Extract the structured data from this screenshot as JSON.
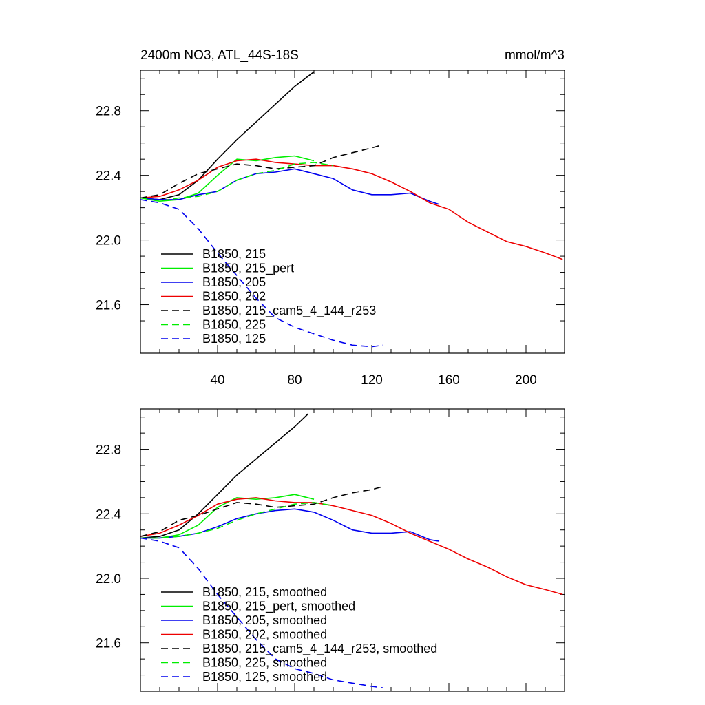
{
  "chart_data": [
    {
      "type": "line",
      "title": "2400m NO3, ATL_44S-18S",
      "units": "mmol/m^3",
      "xlim": [
        0,
        220
      ],
      "ylim": [
        21.3,
        23.05
      ],
      "xticks": [
        40,
        80,
        120,
        160,
        200
      ],
      "xtick_labels": [
        "40",
        "80",
        "120",
        "160",
        "200"
      ],
      "yticks": [
        21.6,
        22.0,
        22.4,
        22.8
      ],
      "ytick_labels": [
        "21.6",
        "22.0",
        "22.4",
        "22.8"
      ],
      "legend_position": "bottom-left",
      "series": [
        {
          "name": "B1850, 215",
          "color": "#000000",
          "dash": "solid",
          "x": [
            0,
            10,
            20,
            30,
            40,
            50,
            60,
            70,
            80,
            90
          ],
          "y": [
            22.26,
            22.25,
            22.28,
            22.37,
            22.5,
            22.62,
            22.73,
            22.84,
            22.95,
            23.04
          ]
        },
        {
          "name": "B1850, 215_pert",
          "color": "#00ee00",
          "dash": "solid",
          "x": [
            0,
            10,
            20,
            30,
            40,
            50,
            60,
            70,
            80,
            90
          ],
          "y": [
            22.26,
            22.24,
            22.25,
            22.29,
            22.4,
            22.5,
            22.49,
            22.51,
            22.52,
            22.49
          ]
        },
        {
          "name": "B1850, 205",
          "color": "#0000ee",
          "dash": "solid",
          "x": [
            0,
            10,
            20,
            30,
            40,
            50,
            60,
            70,
            80,
            90,
            100,
            110,
            120,
            130,
            140,
            150,
            155
          ],
          "y": [
            22.26,
            22.25,
            22.25,
            22.28,
            22.3,
            22.37,
            22.41,
            22.42,
            22.44,
            22.41,
            22.38,
            22.31,
            22.28,
            22.28,
            22.29,
            22.24,
            22.22
          ]
        },
        {
          "name": "B1850, 202",
          "color": "#ee0000",
          "dash": "solid",
          "x": [
            0,
            10,
            20,
            30,
            40,
            50,
            60,
            70,
            80,
            90,
            100,
            110,
            120,
            130,
            140,
            150,
            160,
            170,
            180,
            190,
            200,
            210,
            219
          ],
          "y": [
            22.26,
            22.27,
            22.31,
            22.37,
            22.45,
            22.49,
            22.5,
            22.48,
            22.47,
            22.46,
            22.46,
            22.44,
            22.41,
            22.36,
            22.3,
            22.23,
            22.19,
            22.11,
            22.05,
            21.99,
            21.96,
            21.92,
            21.88
          ]
        },
        {
          "name": "B1850, 215_cam5_4_144_r253",
          "color": "#000000",
          "dash": "dashed",
          "x": [
            0,
            10,
            20,
            30,
            40,
            50,
            60,
            70,
            80,
            90,
            100,
            110,
            120,
            126
          ],
          "y": [
            22.26,
            22.28,
            22.35,
            22.41,
            22.44,
            22.47,
            22.46,
            22.44,
            22.45,
            22.46,
            22.51,
            22.54,
            22.57,
            22.59
          ]
        },
        {
          "name": "B1850, 225",
          "color": "#00ee00",
          "dash": "dashed",
          "x": [
            0,
            10,
            20,
            30,
            40,
            50,
            60,
            70,
            80,
            90,
            100
          ],
          "y": [
            22.26,
            22.24,
            22.26,
            22.27,
            22.3,
            22.37,
            22.41,
            22.43,
            22.47,
            22.48,
            22.46
          ]
        },
        {
          "name": "B1850, 125",
          "color": "#0000ee",
          "dash": "dashed",
          "x": [
            0,
            10,
            20,
            30,
            40,
            50,
            60,
            70,
            80,
            90,
            100,
            110,
            120,
            126
          ],
          "y": [
            22.25,
            22.23,
            22.19,
            22.07,
            21.92,
            21.78,
            21.64,
            21.52,
            21.46,
            21.42,
            21.38,
            21.35,
            21.34,
            21.35
          ]
        }
      ]
    },
    {
      "type": "line",
      "title": "",
      "xlim": [
        0,
        220
      ],
      "ylim": [
        21.3,
        23.05
      ],
      "xticks": [
        40,
        80,
        120,
        160,
        200
      ],
      "xtick_labels": [],
      "yticks": [
        21.6,
        22.0,
        22.4,
        22.8
      ],
      "ytick_labels": [
        "21.6",
        "22.0",
        "22.4",
        "22.8"
      ],
      "legend_position": "bottom-left",
      "series": [
        {
          "name": "B1850, 215, smoothed",
          "color": "#000000",
          "dash": "solid",
          "x": [
            0,
            10,
            20,
            30,
            40,
            50,
            60,
            70,
            80,
            87
          ],
          "y": [
            22.25,
            22.26,
            22.3,
            22.4,
            22.52,
            22.64,
            22.74,
            22.84,
            22.94,
            23.02
          ]
        },
        {
          "name": "B1850, 215_pert, smoothed",
          "color": "#00ee00",
          "dash": "solid",
          "x": [
            0,
            10,
            20,
            30,
            40,
            50,
            60,
            70,
            80,
            90
          ],
          "y": [
            22.25,
            22.25,
            22.27,
            22.33,
            22.44,
            22.5,
            22.49,
            22.5,
            22.52,
            22.49
          ]
        },
        {
          "name": "B1850, 205, smoothed",
          "color": "#0000ee",
          "dash": "solid",
          "x": [
            0,
            10,
            20,
            30,
            40,
            50,
            60,
            70,
            80,
            90,
            100,
            110,
            120,
            130,
            140,
            150,
            155
          ],
          "y": [
            22.25,
            22.25,
            22.26,
            22.28,
            22.32,
            22.37,
            22.4,
            22.42,
            22.43,
            22.41,
            22.36,
            22.3,
            22.28,
            22.28,
            22.29,
            22.24,
            22.23
          ]
        },
        {
          "name": "B1850, 202, smoothed",
          "color": "#ee0000",
          "dash": "solid",
          "x": [
            0,
            10,
            20,
            30,
            40,
            50,
            60,
            70,
            80,
            90,
            100,
            110,
            120,
            130,
            140,
            150,
            160,
            170,
            180,
            190,
            200,
            210,
            219
          ],
          "y": [
            22.26,
            22.28,
            22.33,
            22.39,
            22.46,
            22.49,
            22.5,
            22.48,
            22.47,
            22.47,
            22.45,
            22.42,
            22.39,
            22.34,
            22.28,
            22.23,
            22.18,
            22.12,
            22.07,
            22.01,
            21.96,
            21.93,
            21.9
          ]
        },
        {
          "name": "B1850, 215_cam5_4_144_r253, smoothed",
          "color": "#000000",
          "dash": "dashed",
          "x": [
            0,
            10,
            20,
            30,
            40,
            50,
            60,
            70,
            80,
            90,
            100,
            110,
            120,
            126
          ],
          "y": [
            22.26,
            22.29,
            22.36,
            22.39,
            22.43,
            22.47,
            22.46,
            22.44,
            22.45,
            22.46,
            22.5,
            22.53,
            22.55,
            22.57
          ]
        },
        {
          "name": "B1850, 225, smoothed",
          "color": "#00ee00",
          "dash": "dashed",
          "x": [
            0,
            10,
            20,
            30,
            40,
            50,
            60,
            70,
            80,
            90,
            100
          ],
          "y": [
            22.25,
            22.25,
            22.26,
            22.28,
            22.31,
            22.36,
            22.4,
            22.43,
            22.46,
            22.47,
            22.45
          ]
        },
        {
          "name": "B1850, 125, smoothed",
          "color": "#0000ee",
          "dash": "dashed",
          "x": [
            0,
            10,
            20,
            30,
            40,
            50,
            60,
            70,
            80,
            90,
            100,
            110,
            120,
            126
          ],
          "y": [
            22.25,
            22.23,
            22.19,
            22.06,
            21.9,
            21.76,
            21.62,
            21.5,
            21.44,
            21.41,
            21.37,
            21.35,
            21.33,
            21.32
          ]
        }
      ]
    }
  ]
}
